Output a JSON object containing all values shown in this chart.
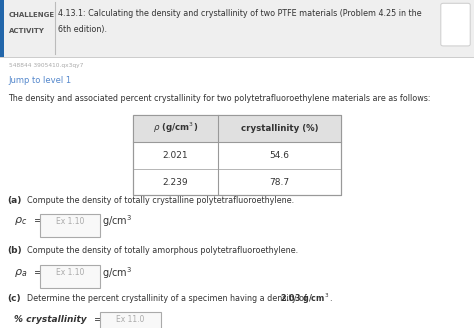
{
  "id_text": "548844 3905410.qx3qy7",
  "jump_text": "Jump to level 1",
  "body_text": "The density and associated percent crystallinity for two polytetrafluoroethylene materials are as follows:",
  "table_row1": [
    "2.021",
    "54.6"
  ],
  "table_row2": [
    "2.239",
    "78.7"
  ],
  "part_a_text": "Compute the density of totally crystalline polytetrafluoroethylene.",
  "part_a_box": "Ex 1.10",
  "part_b_text": "Compute the density of totally amorphous polytetrafluoroethylene.",
  "part_b_box": "Ex 1.10",
  "part_c_text": "Determine the percent crystallinity of a specimen having a density of ",
  "part_c_bold": "2.03 g/cm",
  "part_c_box": "Ex 11.0",
  "title_line1": "4.13.1: Calculating the density and crystallinity of two PTFE materials (Problem 4.25 in the",
  "title_line2": "6th edition).",
  "bg_color": "#efefef",
  "white": "#ffffff",
  "table_border": "#999999",
  "blue_link": "#5588cc",
  "text_dark": "#333333",
  "text_mid": "#555555",
  "box_border": "#aaaaaa",
  "box_bg": "#f8f8f8",
  "accent_blue": "#2266aa",
  "hdr_bg": "#e0e0e0",
  "gray_text": "#aaaaaa",
  "tiny_text": "#aaaaaa"
}
